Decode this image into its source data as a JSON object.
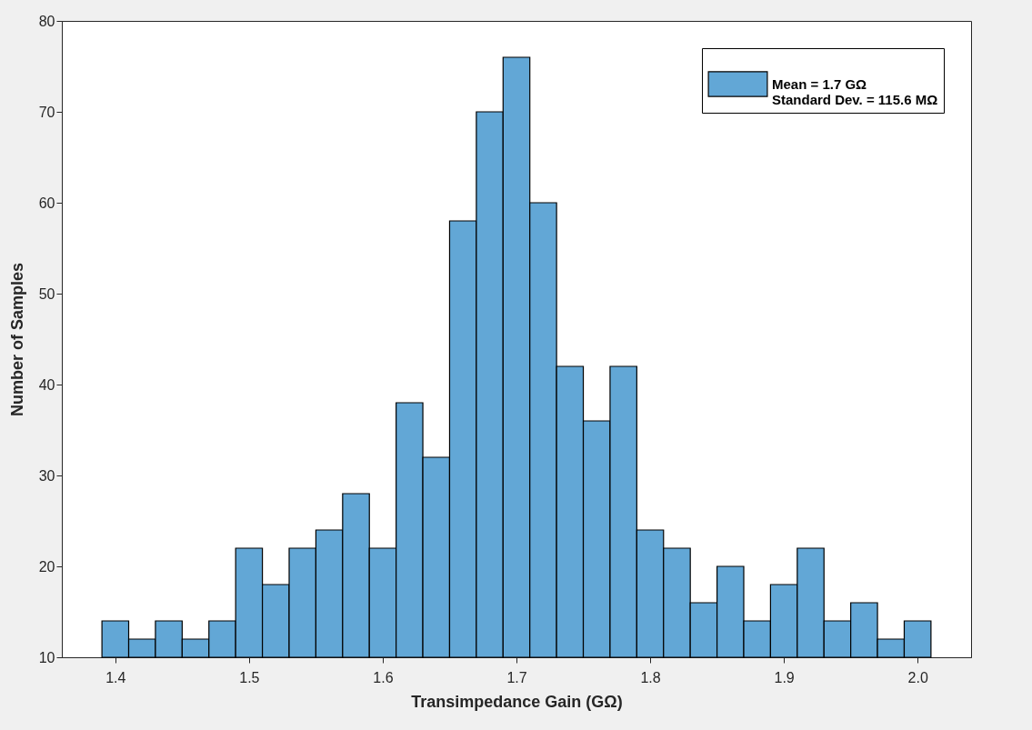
{
  "chart_data": {
    "type": "histogram",
    "xlabel": "Transimpedance Gain (GΩ)",
    "ylabel": "Number of Samples",
    "bins": [
      1.39,
      1.41,
      1.43,
      1.45,
      1.47,
      1.49,
      1.51,
      1.53,
      1.55,
      1.57,
      1.59,
      1.61,
      1.63,
      1.65,
      1.67,
      1.69,
      1.71,
      1.73,
      1.75,
      1.77,
      1.79,
      1.81,
      1.83,
      1.85,
      1.87,
      1.89,
      1.91,
      1.93,
      1.95,
      1.97,
      1.99,
      2.01
    ],
    "series": [
      {
        "name": "Mean = 1.7 GΩ\nStandard Dev. = 115.6 MΩ",
        "color": "#62a7d6",
        "values": [
          14,
          12,
          14,
          12,
          14,
          22,
          18,
          22,
          24,
          28,
          22,
          38,
          32,
          58,
          70,
          76,
          60,
          42,
          36,
          42,
          24,
          22,
          16,
          20,
          14,
          18,
          22,
          14,
          16,
          12,
          14
        ]
      }
    ],
    "xlim": [
      1.36,
      2.04
    ],
    "xticks": [
      1.4,
      1.5,
      1.6,
      1.7,
      1.8,
      1.9,
      {
        "value": 2.0,
        "label": "2.0"
      }
    ],
    "ylim": [
      10,
      80
    ],
    "yticks": [
      10,
      20,
      30,
      40,
      50,
      60,
      70,
      80
    ],
    "grid": false,
    "legend": "top right"
  }
}
